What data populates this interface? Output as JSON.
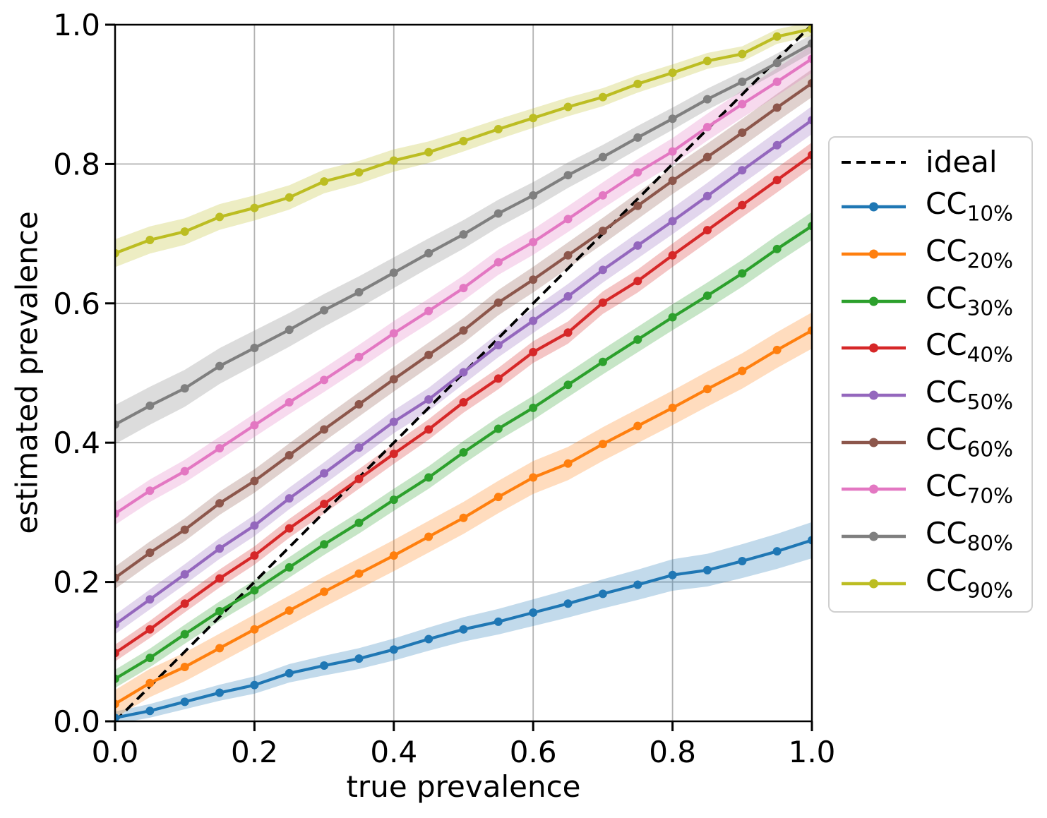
{
  "chart_data": {
    "type": "line",
    "title": "",
    "xlabel": "true prevalence",
    "ylabel": "estimated prevalence",
    "xlim": [
      0.0,
      1.0
    ],
    "ylim": [
      0.0,
      1.0
    ],
    "xticks": [
      "0.0",
      "0.2",
      "0.4",
      "0.6",
      "0.8",
      "1.0"
    ],
    "yticks": [
      "0.0",
      "0.2",
      "0.4",
      "0.6",
      "0.8",
      "1.0"
    ],
    "grid": true,
    "legend_position": "outside-right",
    "x": [
      0.0,
      0.05,
      0.1,
      0.15,
      0.2,
      0.25,
      0.3,
      0.35,
      0.4,
      0.45,
      0.5,
      0.55,
      0.6,
      0.65,
      0.7,
      0.75,
      0.8,
      0.85,
      0.9,
      0.95,
      1.0
    ],
    "ideal": {
      "label": "ideal",
      "color": "#000000",
      "line_style": "dashed",
      "x": [
        0.0,
        1.0
      ],
      "y": [
        0.0,
        1.0
      ]
    },
    "series": [
      {
        "name": "cc-10",
        "label": "CC",
        "sub": "10%",
        "color": "#1f77b4",
        "values": [
          0.005,
          0.015,
          0.028,
          0.041,
          0.052,
          0.069,
          0.08,
          0.09,
          0.103,
          0.118,
          0.132,
          0.143,
          0.156,
          0.169,
          0.183,
          0.196,
          0.21,
          0.217,
          0.23,
          0.244,
          0.26
        ],
        "band_half_width": [
          0.009,
          0.026
        ]
      },
      {
        "name": "cc-20",
        "label": "CC",
        "sub": "20%",
        "color": "#ff7f0e",
        "values": [
          0.025,
          0.055,
          0.078,
          0.105,
          0.132,
          0.159,
          0.186,
          0.212,
          0.238,
          0.265,
          0.292,
          0.322,
          0.35,
          0.37,
          0.398,
          0.424,
          0.45,
          0.477,
          0.503,
          0.533,
          0.561
        ],
        "band_half_width": [
          0.02,
          0.026
        ]
      },
      {
        "name": "cc-30",
        "label": "CC",
        "sub": "30%",
        "color": "#2ca02c",
        "values": [
          0.061,
          0.091,
          0.125,
          0.158,
          0.188,
          0.221,
          0.254,
          0.285,
          0.318,
          0.35,
          0.386,
          0.42,
          0.45,
          0.483,
          0.516,
          0.548,
          0.58,
          0.611,
          0.643,
          0.678,
          0.711
        ],
        "band_half_width": [
          0.013,
          0.02
        ]
      },
      {
        "name": "cc-40",
        "label": "CC",
        "sub": "40%",
        "color": "#d62728",
        "values": [
          0.098,
          0.132,
          0.169,
          0.205,
          0.238,
          0.277,
          0.312,
          0.348,
          0.384,
          0.419,
          0.458,
          0.492,
          0.53,
          0.558,
          0.601,
          0.632,
          0.669,
          0.705,
          0.741,
          0.777,
          0.813
        ],
        "band_half_width": [
          0.012,
          0.018
        ]
      },
      {
        "name": "cc-50",
        "label": "CC",
        "sub": "50%",
        "color": "#9467bd",
        "values": [
          0.139,
          0.175,
          0.211,
          0.248,
          0.281,
          0.32,
          0.356,
          0.393,
          0.43,
          0.462,
          0.501,
          0.54,
          0.575,
          0.61,
          0.648,
          0.683,
          0.718,
          0.754,
          0.791,
          0.827,
          0.863
        ],
        "band_half_width": [
          0.014,
          0.02
        ]
      },
      {
        "name": "cc-60",
        "label": "CC",
        "sub": "60%",
        "color": "#8c564b",
        "values": [
          0.206,
          0.242,
          0.275,
          0.313,
          0.345,
          0.382,
          0.419,
          0.455,
          0.491,
          0.526,
          0.561,
          0.601,
          0.634,
          0.669,
          0.704,
          0.74,
          0.776,
          0.81,
          0.845,
          0.881,
          0.916
        ],
        "band_half_width": [
          0.016,
          0.02
        ]
      },
      {
        "name": "cc-70",
        "label": "CC",
        "sub": "70%",
        "color": "#e377c2",
        "values": [
          0.298,
          0.331,
          0.359,
          0.392,
          0.425,
          0.458,
          0.49,
          0.523,
          0.557,
          0.589,
          0.622,
          0.659,
          0.688,
          0.721,
          0.755,
          0.788,
          0.818,
          0.853,
          0.886,
          0.918,
          0.951
        ],
        "band_half_width": [
          0.016,
          0.02
        ]
      },
      {
        "name": "cc-80",
        "label": "CC",
        "sub": "80%",
        "color": "#7f7f7f",
        "values": [
          0.426,
          0.453,
          0.478,
          0.51,
          0.536,
          0.562,
          0.59,
          0.616,
          0.644,
          0.672,
          0.699,
          0.729,
          0.755,
          0.784,
          0.81,
          0.838,
          0.865,
          0.893,
          0.918,
          0.945,
          0.973
        ],
        "band_half_width": [
          0.028,
          0.013
        ]
      },
      {
        "name": "cc-90",
        "label": "CC",
        "sub": "90%",
        "color": "#bcbd22",
        "values": [
          0.672,
          0.691,
          0.703,
          0.724,
          0.737,
          0.752,
          0.775,
          0.788,
          0.805,
          0.817,
          0.833,
          0.85,
          0.866,
          0.882,
          0.896,
          0.915,
          0.931,
          0.948,
          0.958,
          0.983,
          0.994
        ],
        "band_half_width": [
          0.02,
          0.01
        ]
      }
    ]
  },
  "style": {
    "background": "#ffffff",
    "grid_color": "#b2b2b2",
    "spine_color": "#000000",
    "tick_color": "#000000",
    "legend_border": "#cfcfcf",
    "band_opacity": 0.27
  }
}
